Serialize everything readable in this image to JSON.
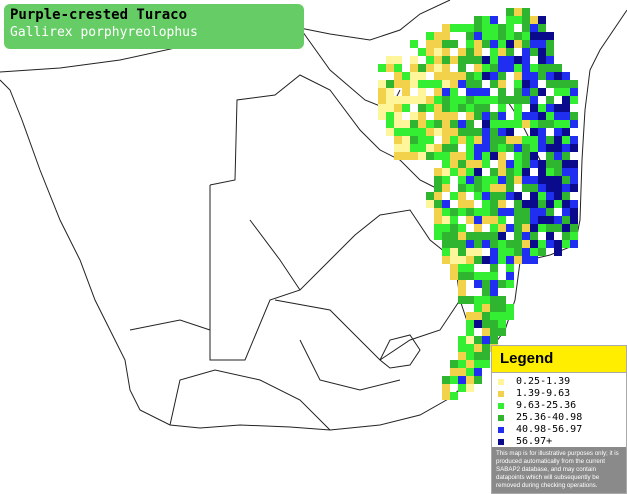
{
  "header": {
    "title": "Purple-crested Turaco",
    "subtitle": "Gallirex porphyreolophus"
  },
  "legend": {
    "title": "Legend",
    "items": [
      {
        "label": "0.25-1.39",
        "color": "#fff59a"
      },
      {
        "label": "1.39-9.63",
        "color": "#f2d24a"
      },
      {
        "label": "9.63-25.36",
        "color": "#33ee33"
      },
      {
        "label": "25.36-40.98",
        "color": "#2fb52f"
      },
      {
        "label": "40.98-56.97",
        "color": "#1f2ef0"
      },
      {
        "label": "56.97+",
        "color": "#0a0a8c"
      }
    ],
    "disclaimer": "This map is for illustrative purposes only; it is produced automatically from the current SABAP2 database, and may contain datapoints which will subsequently be removed during checking operations."
  }
}
